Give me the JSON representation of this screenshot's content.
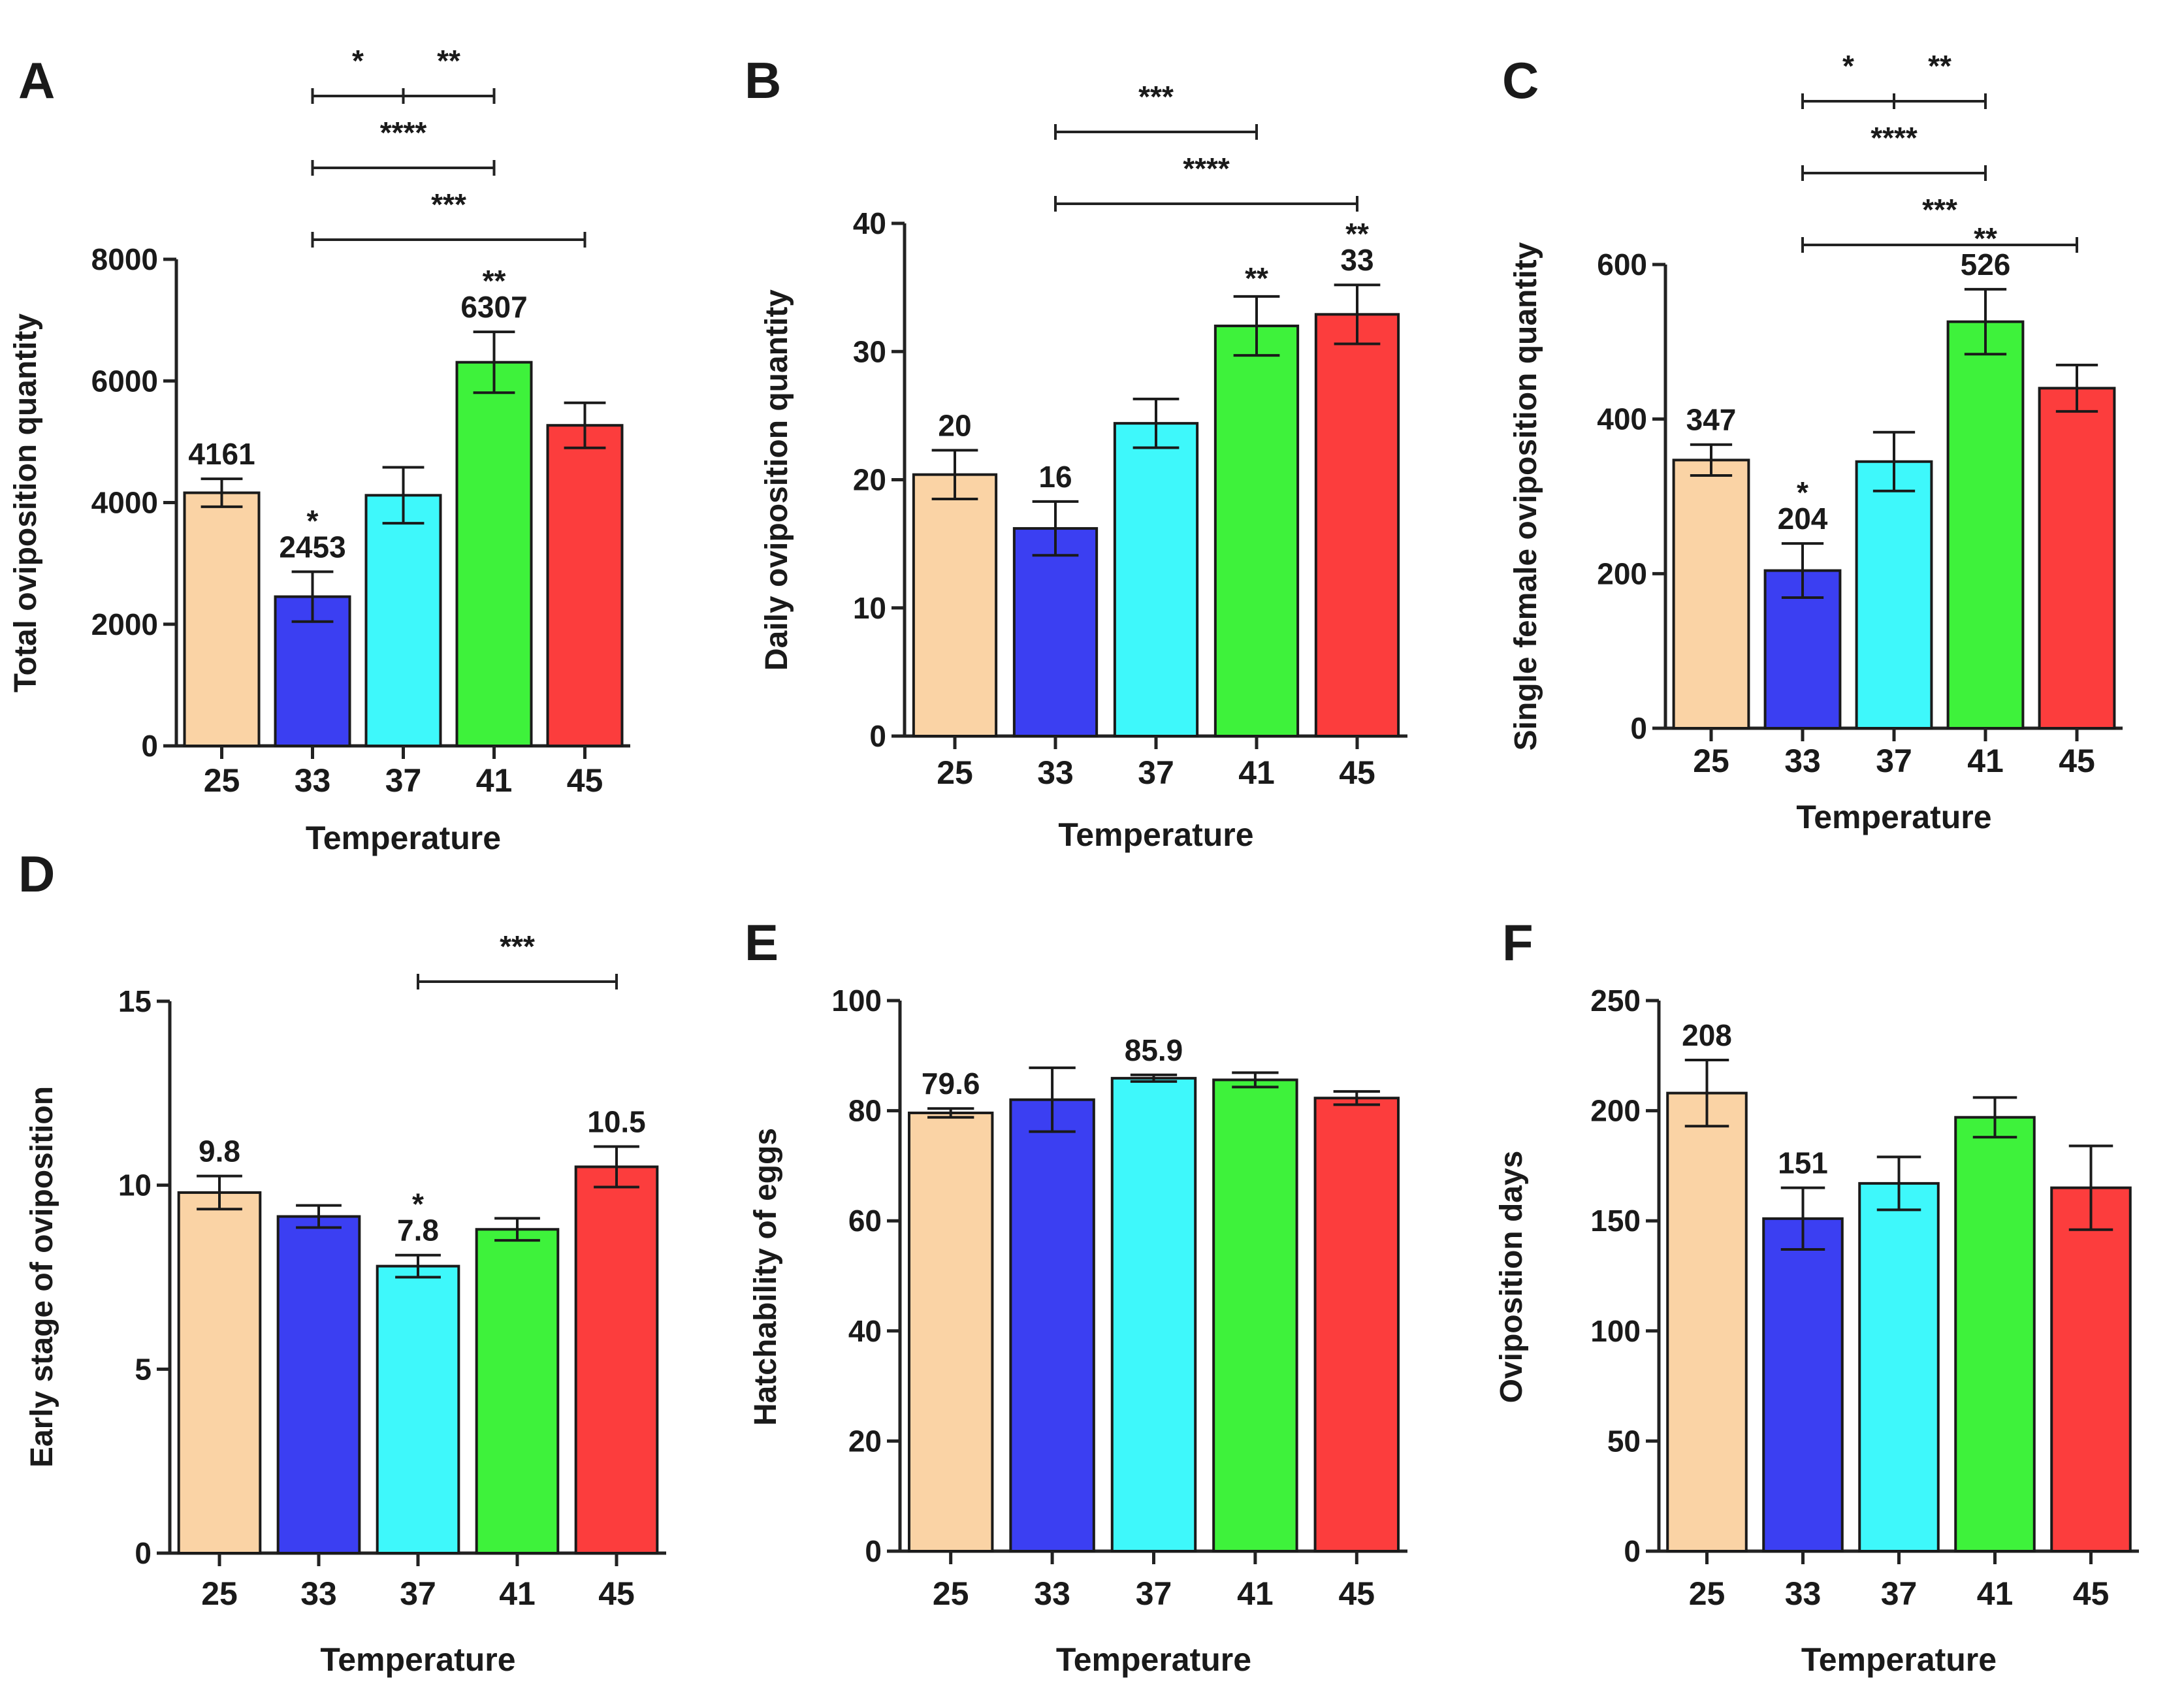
{
  "figure": {
    "colors": [
      "#fad3a5",
      "#3b3ff2",
      "#3ef8fb",
      "#3ef23b",
      "#fc3d3d"
    ]
  },
  "chart_data": [
    {
      "panel": "A",
      "type": "bar",
      "categories": [
        "25",
        "33",
        "37",
        "41",
        "45"
      ],
      "values": [
        4161,
        2453,
        4120,
        6307,
        5270
      ],
      "errors": [
        230,
        410,
        460,
        500,
        370
      ],
      "xlabel": "Temperature",
      "ylabel": "Total oviposition quantity",
      "ylim": [
        0,
        8000
      ],
      "yticks": [
        0,
        2000,
        4000,
        6000,
        8000
      ],
      "value_labels": {
        "0": "4161",
        "1": "2453",
        "3": "6307"
      },
      "bar_stars": {
        "1": "*",
        "3": "**"
      },
      "brackets": [
        {
          "from": 1,
          "to": 2,
          "label": "*"
        },
        {
          "from": 2,
          "to": 3,
          "label": "**"
        },
        {
          "from": 1,
          "to": 3,
          "label": "****"
        },
        {
          "from": 1,
          "to": 4,
          "label": "***"
        }
      ]
    },
    {
      "panel": "B",
      "type": "bar",
      "categories": [
        "25",
        "33",
        "37",
        "41",
        "45"
      ],
      "values": [
        20.4,
        16.2,
        24.4,
        32.0,
        32.9
      ],
      "errors": [
        1.9,
        2.1,
        1.9,
        2.3,
        2.3
      ],
      "xlabel": "Temperature",
      "ylabel": "Daily oviposition quantity",
      "ylim": [
        0,
        40
      ],
      "yticks": [
        0,
        10,
        20,
        30,
        40
      ],
      "value_labels": {
        "0": "20",
        "1": "16",
        "4": "33"
      },
      "bar_stars": {
        "3": "**",
        "4": "**"
      },
      "brackets": [
        {
          "from": 1,
          "to": 3,
          "label": "***"
        },
        {
          "from": 1,
          "to": 4,
          "label": "****"
        }
      ]
    },
    {
      "panel": "C",
      "type": "bar",
      "categories": [
        "25",
        "33",
        "37",
        "41",
        "45"
      ],
      "values": [
        347,
        204,
        345,
        526,
        440
      ],
      "errors": [
        20,
        35,
        38,
        42,
        30
      ],
      "xlabel": "Temperature",
      "ylabel": "Single female oviposition quantity",
      "ylim": [
        0,
        600
      ],
      "yticks": [
        0,
        200,
        400,
        600
      ],
      "value_labels": {
        "0": "347",
        "1": "204",
        "3": "526"
      },
      "bar_stars": {
        "1": "*",
        "3": "**"
      },
      "brackets": [
        {
          "from": 1,
          "to": 2,
          "label": "*"
        },
        {
          "from": 2,
          "to": 3,
          "label": "**"
        },
        {
          "from": 1,
          "to": 3,
          "label": "****"
        },
        {
          "from": 1,
          "to": 4,
          "label": "***"
        }
      ]
    },
    {
      "panel": "D",
      "type": "bar",
      "categories": [
        "25",
        "33",
        "37",
        "41",
        "45"
      ],
      "values": [
        9.8,
        9.15,
        7.8,
        8.8,
        10.5
      ],
      "errors": [
        0.45,
        0.3,
        0.3,
        0.3,
        0.55
      ],
      "xlabel": "Temperature",
      "ylabel": "Early stage of oviposition",
      "ylim": [
        0,
        15
      ],
      "yticks": [
        0,
        5,
        10,
        15
      ],
      "value_labels": {
        "0": "9.8",
        "2": "7.8",
        "4": "10.5"
      },
      "bar_stars": {
        "2": "*"
      },
      "brackets": [
        {
          "from": 2,
          "to": 4,
          "label": "***"
        }
      ]
    },
    {
      "panel": "E",
      "type": "bar",
      "categories": [
        "25",
        "33",
        "37",
        "41",
        "45"
      ],
      "values": [
        79.6,
        82.0,
        85.9,
        85.6,
        82.3
      ],
      "errors": [
        0.8,
        5.8,
        0.6,
        1.3,
        1.2
      ],
      "xlabel": "Temperature",
      "ylabel": "Hatchability of eggs",
      "ylim": [
        0,
        100
      ],
      "yticks": [
        0,
        20,
        40,
        60,
        80,
        100
      ],
      "value_labels": {
        "0": "79.6",
        "2": "85.9"
      },
      "bar_stars": {},
      "brackets": []
    },
    {
      "panel": "F",
      "type": "bar",
      "categories": [
        "25",
        "33",
        "37",
        "41",
        "45"
      ],
      "values": [
        208,
        151,
        167,
        197,
        165
      ],
      "errors": [
        15,
        14,
        12,
        9,
        19
      ],
      "xlabel": "Temperature",
      "ylabel": "Oviposition days",
      "ylim": [
        0,
        250
      ],
      "yticks": [
        0,
        50,
        100,
        150,
        200,
        250
      ],
      "value_labels": {
        "0": "208",
        "1": "151"
      },
      "bar_stars": {},
      "brackets": []
    }
  ]
}
